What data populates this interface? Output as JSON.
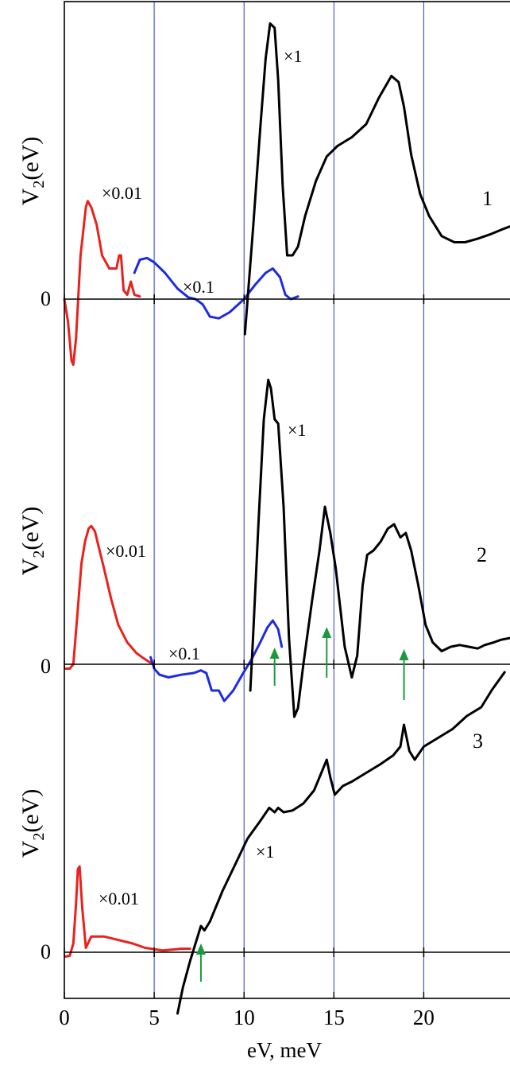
{
  "chart_data": {
    "type": "line",
    "xlabel": "eV, meV",
    "xlim": [
      0,
      24.8
    ],
    "x_ticks": [
      0,
      5,
      10,
      15,
      20
    ],
    "x_tick_labels": [
      "0",
      "5",
      "10",
      "15",
      "20"
    ],
    "vertical_grid_x": [
      5,
      10,
      15,
      20
    ],
    "colors": {
      "red": "#e8221c",
      "blue": "#1d2ce0",
      "black": "#000000",
      "green": "#1a9a3c",
      "grid": "#2a3cd0"
    },
    "panels": [
      {
        "ylabel_main": "V",
        "ylabel_sub": "2",
        "ylabel_tail": "(eV)",
        "zero_label": "0",
        "curve_label": "1",
        "series": [
          {
            "color": "red",
            "scale_label": "×0.01",
            "x": [
              0,
              0.2,
              0.4,
              0.5,
              0.65,
              0.9,
              1.2,
              1.3,
              1.5,
              1.8,
              2.1,
              2.5,
              2.9,
              3.05,
              3.15,
              3.3,
              3.5,
              3.7,
              3.9,
              4.2
            ],
            "y": [
              0,
              -0.25,
              -0.7,
              -0.75,
              -0.45,
              0.5,
              1.05,
              1.12,
              1.05,
              0.85,
              0.5,
              0.35,
              0.35,
              0.5,
              0.5,
              0.1,
              0.05,
              0.2,
              0.05,
              0.03
            ]
          },
          {
            "color": "blue",
            "scale_label": "×0.1",
            "x": [
              3.9,
              4.2,
              4.6,
              5.0,
              5.6,
              6.3,
              6.9,
              7.3,
              7.7,
              8.1,
              8.6,
              9.2,
              10.0,
              10.6,
              11.2,
              11.6,
              12.0,
              12.3,
              12.6,
              13.0
            ],
            "y": [
              0.3,
              0.45,
              0.47,
              0.42,
              0.3,
              0.12,
              0.02,
              0.0,
              -0.06,
              -0.2,
              -0.22,
              -0.15,
              0.0,
              0.16,
              0.3,
              0.35,
              0.25,
              0.05,
              0.0,
              0.03
            ]
          },
          {
            "color": "black",
            "scale_label": "×1",
            "x": [
              10.05,
              10.2,
              10.5,
              10.9,
              11.2,
              11.45,
              11.7,
              11.9,
              12.15,
              12.4,
              12.7,
              13.0,
              13.4,
              14.0,
              14.6,
              15.2,
              16.0,
              16.8,
              17.5,
              18.2,
              18.6,
              18.9,
              19.3,
              19.8,
              20.3,
              21.0,
              21.7,
              22.3,
              23.0,
              23.7,
              24.4,
              24.8
            ],
            "y": [
              -0.4,
              0.0,
              0.8,
              1.95,
              2.75,
              3.15,
              3.1,
              2.5,
              1.3,
              0.5,
              0.5,
              0.6,
              0.95,
              1.35,
              1.63,
              1.75,
              1.85,
              2.0,
              2.3,
              2.55,
              2.48,
              2.2,
              1.65,
              1.2,
              0.95,
              0.72,
              0.65,
              0.65,
              0.69,
              0.74,
              0.8,
              0.83
            ]
          }
        ],
        "y_range": [
          -0.9,
          3.3
        ]
      },
      {
        "ylabel_main": "V",
        "ylabel_sub": "2",
        "ylabel_tail": "(eV)",
        "zero_label": "0",
        "curve_label": "2",
        "series": [
          {
            "color": "red",
            "scale_label": "×0.01",
            "x": [
              0.05,
              0.3,
              0.5,
              0.7,
              0.95,
              1.15,
              1.35,
              1.5,
              1.7,
              1.9,
              2.2,
              2.6,
              3.0,
              3.5,
              4.0,
              4.4,
              4.7,
              5.0
            ],
            "y": [
              -0.05,
              -0.05,
              0.0,
              0.5,
              1.15,
              1.4,
              1.55,
              1.58,
              1.52,
              1.35,
              1.1,
              0.75,
              0.45,
              0.25,
              0.13,
              0.07,
              0.03,
              0.0
            ]
          },
          {
            "color": "blue",
            "scale_label": "×0.1",
            "x": [
              4.8,
              5.0,
              5.3,
              5.8,
              6.5,
              7.2,
              7.6,
              7.9,
              8.2,
              8.6,
              8.9,
              9.4,
              9.9,
              10.4,
              10.9,
              11.3,
              11.6,
              11.9,
              12.1
            ],
            "y": [
              0.08,
              -0.05,
              -0.12,
              -0.15,
              -0.12,
              -0.1,
              -0.07,
              -0.1,
              -0.3,
              -0.3,
              -0.42,
              -0.3,
              -0.12,
              0.05,
              0.25,
              0.42,
              0.5,
              0.4,
              0.2
            ]
          },
          {
            "color": "black",
            "scale_label": "×1",
            "x": [
              10.35,
              10.5,
              10.8,
              11.1,
              11.35,
              11.5,
              11.7,
              11.9,
              12.2,
              12.5,
              12.8,
              13.0,
              13.3,
              13.8,
              14.2,
              14.5,
              14.8,
              15.1,
              15.6,
              16.0,
              16.3,
              16.6,
              16.85,
              17.2,
              17.6,
              18.0,
              18.35,
              18.7,
              19.0,
              19.3,
              19.7,
              20.1,
              20.5,
              21.0,
              21.5,
              22.0,
              22.5,
              23.0,
              23.4,
              23.9,
              24.3,
              24.8
            ],
            "y": [
              -0.3,
              0.3,
              1.6,
              2.8,
              3.25,
              3.15,
              2.8,
              2.75,
              1.8,
              0.3,
              -0.6,
              -0.5,
              0.0,
              0.75,
              1.3,
              1.8,
              1.5,
              1.1,
              0.2,
              -0.15,
              0.1,
              0.9,
              1.25,
              1.3,
              1.4,
              1.55,
              1.6,
              1.45,
              1.5,
              1.3,
              0.9,
              0.45,
              0.25,
              0.15,
              0.2,
              0.22,
              0.2,
              0.18,
              0.22,
              0.25,
              0.28,
              0.3
            ]
          }
        ],
        "y_range": [
          -0.95,
          3.65
        ]
      },
      {
        "ylabel_main": "V",
        "ylabel_sub": "2",
        "ylabel_tail": "(eV)",
        "zero_label": "0",
        "curve_label": "3",
        "series": [
          {
            "color": "red",
            "scale_label": "×0.01",
            "x": [
              0.05,
              0.3,
              0.5,
              0.65,
              0.75,
              0.85,
              1.0,
              1.2,
              1.5,
              2.2,
              3.0,
              3.8,
              4.5,
              5.5,
              6.5,
              7.0
            ],
            "y": [
              -0.05,
              -0.04,
              0.1,
              0.55,
              0.95,
              0.98,
              0.5,
              0.05,
              0.18,
              0.18,
              0.14,
              0.1,
              0.05,
              0.02,
              0.04,
              0.04
            ]
          },
          {
            "color": "black",
            "scale_label": "×1",
            "x": [
              6.3,
              6.6,
              7.0,
              7.3,
              7.6,
              7.8,
              8.1,
              8.4,
              8.8,
              9.5,
              10.2,
              10.9,
              11.4,
              11.7,
              11.9,
              12.2,
              12.7,
              13.3,
              13.9,
              14.3,
              14.6,
              14.8,
              15.05,
              15.5,
              16.0,
              16.8,
              17.6,
              18.3,
              18.7,
              18.9,
              19.2,
              19.5,
              20.0,
              20.8,
              21.6,
              22.4,
              23.2,
              23.8,
              24.5
            ],
            "y": [
              -0.7,
              -0.4,
              -0.1,
              0.1,
              0.3,
              0.25,
              0.35,
              0.5,
              0.7,
              1.0,
              1.3,
              1.5,
              1.65,
              1.6,
              1.65,
              1.6,
              1.62,
              1.7,
              1.85,
              2.05,
              2.2,
              2.0,
              1.8,
              1.9,
              1.95,
              2.05,
              2.15,
              2.25,
              2.35,
              2.6,
              2.3,
              2.2,
              2.35,
              2.45,
              2.55,
              2.7,
              2.8,
              3.0,
              3.2
            ]
          }
        ],
        "arrows_x": [
          7.6,
          11.7,
          14.6,
          18.9
        ],
        "y_range": [
          -0.8,
          3.4
        ]
      }
    ]
  }
}
